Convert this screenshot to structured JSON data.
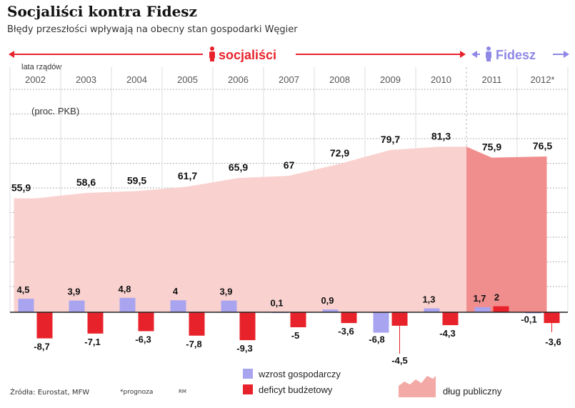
{
  "title": "Socjaliści kontra Fidesz",
  "subtitle": "Błędy przeszłości wpływają na obecny stan gospodarki Węgier",
  "periods": {
    "label": "lata rządów",
    "socialists": "socjaliści",
    "fidesz": "Fidesz"
  },
  "unit_label": "(proc. PKB)",
  "legend": {
    "growth": "wzrost gospodarczy",
    "deficit": "deficyt budżetowy",
    "debt": "dług publiczny"
  },
  "source": "Źródła: Eurostat, MFW",
  "note": "*prognoza",
  "credit": "RM",
  "colors": {
    "socialists": "#e8222a",
    "fidesz": "#8f88e6",
    "growth_bar": "#a9a4f0",
    "deficit_bar": "#e8222a",
    "debt_area": "#f9d2cf",
    "debt_area_fidesz": "#f08e8e"
  },
  "chart_data": {
    "type": "bar",
    "categories": [
      "2002",
      "2003",
      "2004",
      "2005",
      "2006",
      "2007",
      "2008",
      "2009",
      "2010",
      "2011",
      "2012*"
    ],
    "series": [
      {
        "name": "wzrost gospodarczy",
        "values": [
          4.5,
          3.9,
          4.8,
          4,
          3.9,
          0.1,
          0.9,
          -6.8,
          1.3,
          1.7,
          -0.1
        ],
        "labels": [
          "4,5",
          "3,9",
          "4,8",
          "4",
          "3,9",
          "0,1",
          "0,9",
          "-6,8",
          "1,3",
          "1,7",
          "-0,1"
        ]
      },
      {
        "name": "deficyt budżetowy",
        "values": [
          -8.7,
          -7.1,
          -6.3,
          -7.8,
          -9.3,
          -5,
          -3.6,
          -4.5,
          -4.3,
          2,
          -3.6
        ],
        "labels": [
          "-8,7",
          "-7,1",
          "-6,3",
          "-7,8",
          "-9,3",
          "-5",
          "-3,6",
          "-4,5",
          "-4,3",
          "2",
          "-3,6"
        ]
      },
      {
        "name": "dług publiczny",
        "type": "area",
        "values": [
          55.9,
          58.6,
          59.5,
          61.7,
          65.9,
          67,
          72.9,
          79.7,
          81.3,
          75.9,
          76.5
        ],
        "labels": [
          "55,9",
          "58,6",
          "59,5",
          "61,7",
          "65,9",
          "67",
          "72,9",
          "79,7",
          "81,3",
          "75,9",
          "76,5"
        ]
      }
    ],
    "grid": true
  }
}
